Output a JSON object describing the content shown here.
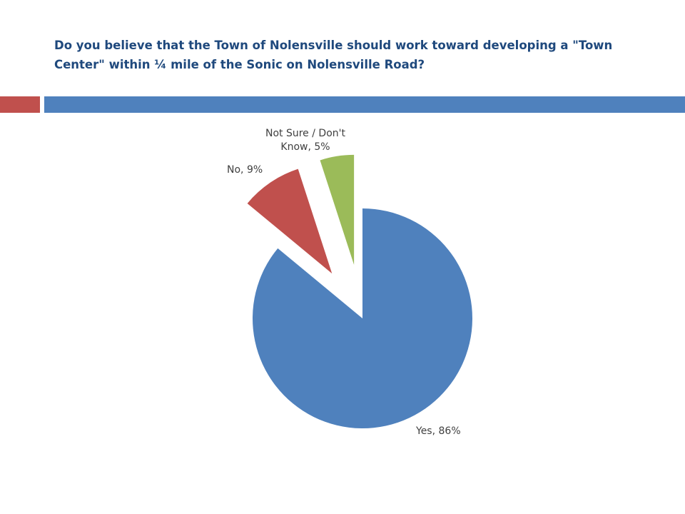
{
  "chart_data": {
    "type": "pie",
    "title": "Do you believe that the Town of Nolensville should work toward developing a \"Town Center\" within ¼ mile of the Sonic on Nolensville Road?",
    "values": [
      86,
      9,
      5
    ],
    "value_labels": [
      "Yes, 86%",
      "No, 9%",
      "Not Sure / Don't Know, 5%"
    ],
    "colors": [
      "#4f81bd",
      "#c0504d",
      "#9bbb59"
    ]
  }
}
